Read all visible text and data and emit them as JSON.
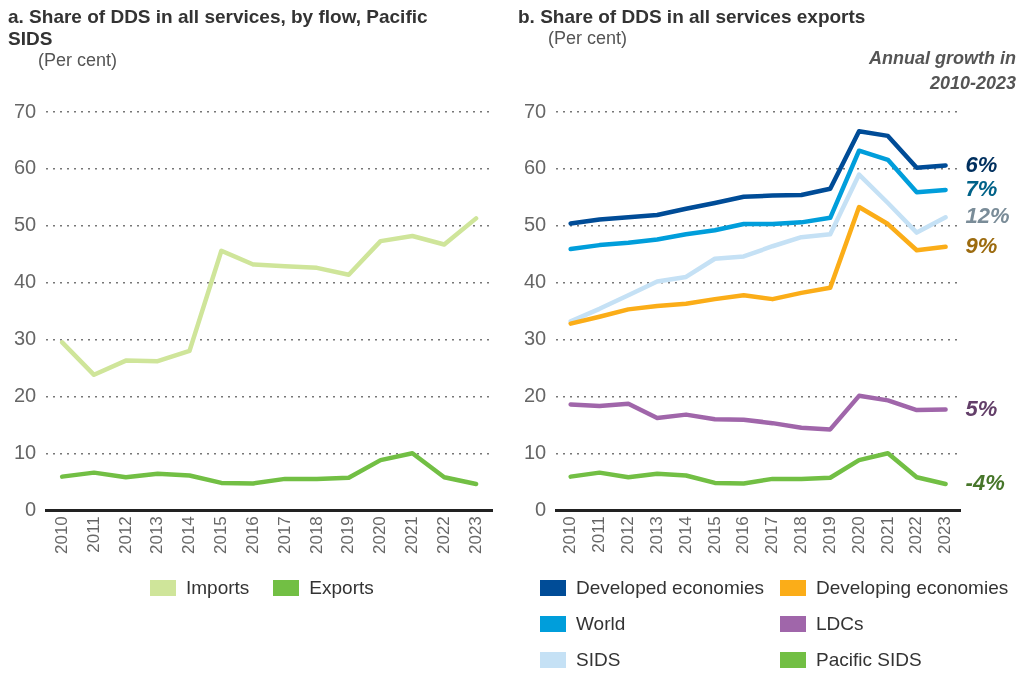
{
  "chart_data": [
    {
      "type": "line",
      "title": "a.  Share of DDS in all services, by flow, Pacific SIDS",
      "subtitle": "(Per cent)",
      "categories": [
        "2010",
        "2011",
        "2012",
        "2013",
        "2014",
        "2015",
        "2016",
        "2017",
        "2018",
        "2019",
        "2020",
        "2021",
        "2022",
        "2023"
      ],
      "series": [
        {
          "name": "Imports",
          "color": "#cfe59a",
          "values": [
            29.5,
            23.8,
            26.3,
            26.2,
            28,
            45.6,
            43.2,
            42.9,
            42.6,
            41.4,
            47.3,
            48.2,
            46.7,
            51.3
          ]
        },
        {
          "name": "Exports",
          "color": "#72bf44",
          "values": [
            5.9,
            6.6,
            5.8,
            6.4,
            6.1,
            4.8,
            4.7,
            5.5,
            5.5,
            5.7,
            8.8,
            10,
            5.8,
            4.6
          ]
        }
      ],
      "ylim": [
        0,
        70
      ],
      "yticks": [
        0,
        10,
        20,
        30,
        40,
        50,
        60,
        70
      ],
      "grid": "y",
      "legend": "bottom",
      "marker": "none",
      "line_style": "solid"
    },
    {
      "type": "line",
      "title": "b.  Share of DDS in all services exports",
      "subtitle": "(Per cent)",
      "categories": [
        "2010",
        "2011",
        "2012",
        "2013",
        "2014",
        "2015",
        "2016",
        "2017",
        "2018",
        "2019",
        "2020",
        "2021",
        "2022",
        "2023"
      ],
      "series": [
        {
          "name": "Developed economies",
          "color": "#004c97",
          "values": [
            50.4,
            51.1,
            51.5,
            51.9,
            53,
            54,
            55.1,
            55.3,
            55.4,
            56.5,
            66.6,
            65.8,
            60.2,
            60.6
          ]
        },
        {
          "name": "Developing economies",
          "color": "#fbad18",
          "values": [
            32.8,
            34,
            35.3,
            35.9,
            36.3,
            37.1,
            37.8,
            37.1,
            38.2,
            39.1,
            53.3,
            50.3,
            45.7,
            46.3
          ]
        },
        {
          "name": "World",
          "color": "#009edb",
          "values": [
            45.9,
            46.6,
            47,
            47.6,
            48.5,
            49.2,
            50.3,
            50.3,
            50.6,
            51.4,
            63.2,
            61.6,
            55.9,
            56.3
          ]
        },
        {
          "name": "LDCs",
          "color": "#a066aa",
          "values": [
            18.6,
            18.3,
            18.7,
            16.2,
            16.8,
            16,
            15.9,
            15.3,
            14.5,
            14.2,
            20.1,
            19.3,
            17.6,
            17.7
          ]
        },
        {
          "name": "SIDS",
          "color": "#c5e1f5",
          "values": [
            33.2,
            35.4,
            37.8,
            40.2,
            41,
            44.2,
            44.6,
            46.4,
            48,
            48.5,
            59,
            54,
            48.8,
            51.5
          ]
        },
        {
          "name": "Pacific SIDS",
          "color": "#72bf44",
          "values": [
            5.9,
            6.6,
            5.8,
            6.4,
            6.1,
            4.8,
            4.7,
            5.5,
            5.5,
            5.7,
            8.8,
            10,
            5.8,
            4.6
          ]
        }
      ],
      "ylim": [
        0,
        70
      ],
      "yticks": [
        0,
        10,
        20,
        30,
        40,
        50,
        60,
        70
      ],
      "grid": "y",
      "legend": "bottom",
      "marker": "none",
      "line_style": "solid",
      "annotations": [
        "Annual growth in 2010-2023",
        {
          "text": "6%",
          "x": "2023",
          "y": 60.6
        },
        {
          "text": "9%",
          "x": "2023",
          "y": 46.3
        },
        {
          "text": "7%",
          "x": "2023",
          "y": 56.3
        },
        {
          "text": "5%",
          "x": "2023",
          "y": 17.7
        },
        {
          "text": "12%",
          "x": "2023",
          "y": 51.5
        },
        {
          "text": "-4%",
          "x": "2023",
          "y": 4.6
        }
      ]
    }
  ]
}
